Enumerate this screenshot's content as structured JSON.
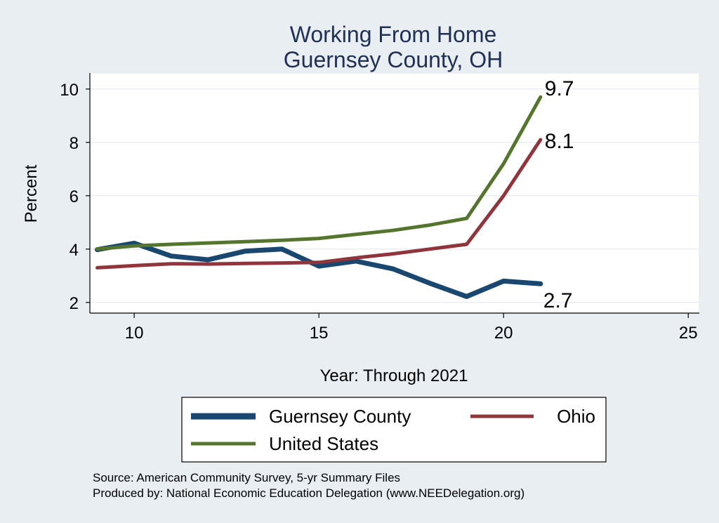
{
  "chart_data": {
    "type": "line",
    "title": [
      "Working From Home",
      "Guernsey County, OH"
    ],
    "xlabel": "Year: Through 2021",
    "ylabel": "Percent",
    "xlim": [
      8.8,
      25.3
    ],
    "ylim": [
      1.6,
      10.6
    ],
    "xticks": [
      10,
      15,
      20,
      25
    ],
    "yticks": [
      2,
      4,
      6,
      8,
      10
    ],
    "grid": true,
    "legend_position": "bottom",
    "series": [
      {
        "name": "Guernsey County",
        "color": "#1a476f",
        "x": [
          9,
          10,
          11,
          12,
          13,
          14,
          15,
          16,
          17,
          18,
          19,
          20,
          21
        ],
        "y": [
          3.98,
          4.22,
          3.74,
          3.6,
          3.92,
          4.0,
          3.36,
          3.55,
          3.26,
          2.72,
          2.22,
          2.8,
          2.7
        ],
        "end_label": "2.7"
      },
      {
        "name": "Ohio",
        "color": "#90353b",
        "x": [
          9,
          10,
          11,
          12,
          13,
          14,
          15,
          16,
          17,
          18,
          19,
          20,
          21
        ],
        "y": [
          3.3,
          3.38,
          3.45,
          3.44,
          3.46,
          3.48,
          3.5,
          3.67,
          3.82,
          4.0,
          4.18,
          6.0,
          8.1
        ],
        "end_label": "8.1"
      },
      {
        "name": "United States",
        "color": "#55752f",
        "x": [
          9,
          10,
          11,
          12,
          13,
          14,
          15,
          16,
          17,
          18,
          19,
          20,
          21
        ],
        "y": [
          4.0,
          4.12,
          4.18,
          4.23,
          4.28,
          4.33,
          4.4,
          4.55,
          4.7,
          4.9,
          5.15,
          7.2,
          9.7
        ],
        "end_label": "9.7"
      }
    ],
    "notes": [
      "Source: American Community Survey, 5-yr Summary Files",
      "Produced by: National Economic Education Delegation (www.NEEDelegation.org)"
    ]
  }
}
